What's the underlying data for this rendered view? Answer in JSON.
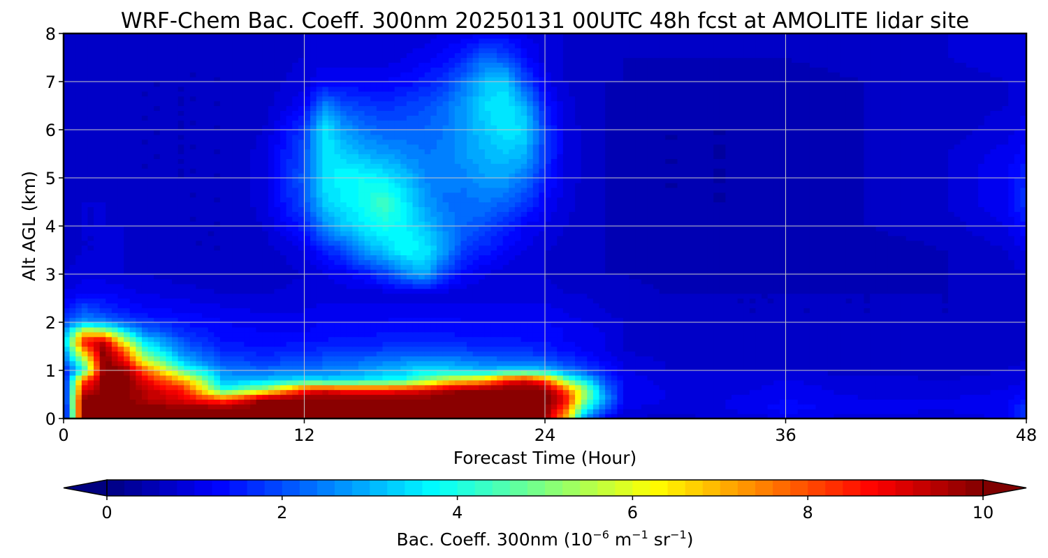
{
  "chart_data": {
    "type": "heatmap",
    "title": "WRF-Chem Bac. Coeff. 300nm  20250131 00UTC 48h fcst at AMOLITE lidar site",
    "xlabel": "Forecast Time (Hour)",
    "ylabel": "Alt AGL (km)",
    "xlim": [
      0,
      48
    ],
    "ylim": [
      0,
      8
    ],
    "xticks": [
      "0",
      "12",
      "24",
      "36",
      "48"
    ],
    "yticks": [
      "0",
      "1",
      "2",
      "3",
      "4",
      "5",
      "6",
      "7",
      "8"
    ],
    "grid": true,
    "colormap": "jet",
    "colorbar": {
      "label": "Bac. Coeff. 300nm  (10",
      "label_exp1": "−6",
      "label_mid": " m",
      "label_exp2": "−1",
      "label_mid2": " sr",
      "label_exp3": "−1",
      "label_end": ")",
      "range": [
        0,
        10
      ],
      "extend": "both",
      "ticks": [
        "0",
        "2",
        "4",
        "6",
        "8",
        "10"
      ]
    },
    "x": [
      0,
      1,
      2,
      3,
      4,
      6,
      8,
      10,
      12,
      13,
      14,
      15,
      16,
      17,
      18,
      19,
      20,
      21,
      22,
      23,
      24,
      25,
      26,
      27,
      28,
      30,
      33,
      36,
      40,
      44,
      47,
      48
    ],
    "y": [
      0,
      0.2,
      0.4,
      0.6,
      0.8,
      1.0,
      1.2,
      1.4,
      1.6,
      1.8,
      2.0,
      2.2,
      2.6,
      3.0,
      3.5,
      4.0,
      4.5,
      5.0,
      5.5,
      6.0,
      6.5,
      7.0,
      7.5,
      8.0
    ],
    "z_note": "backscatter values in 1e-6 m^-1 sr^-1, rows = altitude, cols = forecast hour",
    "z": [
      [
        0.5,
        10,
        10,
        10,
        10,
        10,
        10,
        10,
        10,
        10,
        10,
        10,
        10,
        10,
        10,
        10,
        10,
        10,
        10,
        10,
        10,
        7.0,
        2.5,
        1.2,
        0.8,
        0.7,
        0.8,
        1.0,
        0.9,
        0.9,
        1.0,
        1.6
      ],
      [
        0.5,
        10,
        10,
        10,
        10,
        10,
        10,
        10,
        10,
        10,
        10,
        10,
        10,
        10,
        10,
        10,
        10,
        10,
        10,
        10,
        10,
        8.0,
        3.8,
        2.0,
        1.0,
        0.9,
        1.0,
        1.3,
        1.1,
        1.0,
        1.2,
        2.0
      ],
      [
        0.8,
        10,
        10,
        10,
        9.5,
        9.0,
        8.0,
        10,
        10,
        10,
        10,
        10,
        10,
        10,
        10,
        10,
        10,
        10,
        10,
        10,
        10,
        9.0,
        5.0,
        2.8,
        1.2,
        1.0,
        1.0,
        1.2,
        1.0,
        1.0,
        1.1,
        1.5
      ],
      [
        1.0,
        9.0,
        10,
        10,
        9.5,
        8.5,
        4.0,
        5.5,
        8.5,
        9.0,
        8.5,
        8.5,
        8.5,
        8.8,
        9.0,
        9.5,
        10,
        10,
        10,
        10,
        10,
        8.0,
        5.2,
        2.5,
        1.2,
        1.0,
        0.9,
        1.1,
        0.9,
        0.9,
        1.0,
        1.2
      ],
      [
        1.0,
        8.0,
        10,
        10,
        9.0,
        7.0,
        3.0,
        3.2,
        3.6,
        3.4,
        3.5,
        3.6,
        3.8,
        4.0,
        5.0,
        6.0,
        6.5,
        7.0,
        8.5,
        9.0,
        8.0,
        5.0,
        3.5,
        2.0,
        1.2,
        0.9,
        0.9,
        1.0,
        0.9,
        0.8,
        0.9,
        1.0
      ],
      [
        1.2,
        4.0,
        10,
        10,
        8.0,
        4.5,
        2.5,
        2.3,
        2.5,
        2.5,
        2.6,
        2.8,
        3.0,
        3.2,
        3.5,
        3.4,
        3.2,
        3.1,
        3.3,
        3.5,
        3.2,
        2.6,
        2.0,
        1.5,
        1.0,
        0.8,
        0.8,
        0.8,
        0.7,
        0.7,
        0.8,
        0.9
      ],
      [
        2.0,
        5.0,
        10,
        9.0,
        6.0,
        3.0,
        2.0,
        1.8,
        2.0,
        2.1,
        2.2,
        2.3,
        2.5,
        2.6,
        2.8,
        2.7,
        2.5,
        2.4,
        2.3,
        2.3,
        2.1,
        1.8,
        1.5,
        1.2,
        0.9,
        0.8,
        0.7,
        0.7,
        0.7,
        0.7,
        0.7,
        0.8
      ],
      [
        2.5,
        7.0,
        10,
        8.0,
        4.5,
        2.5,
        1.6,
        1.5,
        1.6,
        1.7,
        1.8,
        1.8,
        1.9,
        1.9,
        2.0,
        2.0,
        1.9,
        1.8,
        1.8,
        1.7,
        1.6,
        1.4,
        1.2,
        1.0,
        0.8,
        0.7,
        0.7,
        0.7,
        0.7,
        0.7,
        0.7,
        0.7
      ],
      [
        3.0,
        8.5,
        9.5,
        6.0,
        3.5,
        2.0,
        1.4,
        1.3,
        1.4,
        1.4,
        1.5,
        1.5,
        1.5,
        1.6,
        1.6,
        1.6,
        1.5,
        1.5,
        1.5,
        1.4,
        1.4,
        1.2,
        1.1,
        1.0,
        0.8,
        0.7,
        0.7,
        0.7,
        0.7,
        0.7,
        0.7,
        0.7
      ],
      [
        2.5,
        6.5,
        6.0,
        4.0,
        2.5,
        1.6,
        1.3,
        1.2,
        1.2,
        1.3,
        1.3,
        1.3,
        1.4,
        1.4,
        1.4,
        1.4,
        1.3,
        1.3,
        1.3,
        1.3,
        1.3,
        1.2,
        1.1,
        1.0,
        0.8,
        0.7,
        0.7,
        0.7,
        0.7,
        0.7,
        0.7,
        0.7
      ],
      [
        2.0,
        2.8,
        2.6,
        2.2,
        1.8,
        1.4,
        1.2,
        1.1,
        1.1,
        1.2,
        1.2,
        1.2,
        1.2,
        1.3,
        1.3,
        1.3,
        1.2,
        1.2,
        1.2,
        1.2,
        1.2,
        1.1,
        1.0,
        0.9,
        0.8,
        0.7,
        0.7,
        0.7,
        0.7,
        0.7,
        0.7,
        0.7
      ],
      [
        1.5,
        2.2,
        1.8,
        1.5,
        1.3,
        1.2,
        1.1,
        1.0,
        1.0,
        1.1,
        1.1,
        1.1,
        1.1,
        1.1,
        1.1,
        1.1,
        1.1,
        1.1,
        1.1,
        1.1,
        1.1,
        1.0,
        0.9,
        0.8,
        0.7,
        0.7,
        0.6,
        0.6,
        0.6,
        0.6,
        0.7,
        0.7
      ],
      [
        1.0,
        1.2,
        1.2,
        1.1,
        1.0,
        0.9,
        0.8,
        0.8,
        0.9,
        0.9,
        0.9,
        0.9,
        0.9,
        0.9,
        0.9,
        0.9,
        0.9,
        0.9,
        0.9,
        0.9,
        0.9,
        0.8,
        0.8,
        0.7,
        0.7,
        0.6,
        0.6,
        0.6,
        0.6,
        0.6,
        0.6,
        0.7
      ],
      [
        0.8,
        0.9,
        0.9,
        0.8,
        0.8,
        0.7,
        0.6,
        0.6,
        0.8,
        1.0,
        1.1,
        1.4,
        1.8,
        2.5,
        3.0,
        1.8,
        1.2,
        1.0,
        0.9,
        0.8,
        0.8,
        0.7,
        0.7,
        0.6,
        0.6,
        0.5,
        0.5,
        0.5,
        0.5,
        0.6,
        0.7,
        0.8
      ],
      [
        0.7,
        0.8,
        0.8,
        0.8,
        0.7,
        0.6,
        0.6,
        0.7,
        1.0,
        1.5,
        2.0,
        2.8,
        3.2,
        3.8,
        3.6,
        2.8,
        1.8,
        1.5,
        1.2,
        1.0,
        0.8,
        0.7,
        0.7,
        0.6,
        0.5,
        0.5,
        0.5,
        0.5,
        0.5,
        0.6,
        0.8,
        1.0
      ],
      [
        0.7,
        0.8,
        0.8,
        0.8,
        0.7,
        0.6,
        0.6,
        0.8,
        1.5,
        2.6,
        3.2,
        3.6,
        3.9,
        3.7,
        3.2,
        2.6,
        2.2,
        2.0,
        1.6,
        1.2,
        1.0,
        0.8,
        0.7,
        0.6,
        0.5,
        0.5,
        0.5,
        0.5,
        0.6,
        0.7,
        1.0,
        1.4
      ],
      [
        0.7,
        0.8,
        0.8,
        0.7,
        0.7,
        0.6,
        0.6,
        0.9,
        2.0,
        3.3,
        3.6,
        3.9,
        4.4,
        3.6,
        2.8,
        2.4,
        2.3,
        2.4,
        2.2,
        1.8,
        1.2,
        0.9,
        0.7,
        0.6,
        0.5,
        0.4,
        0.4,
        0.5,
        0.6,
        0.8,
        1.2,
        1.8
      ],
      [
        0.7,
        0.7,
        0.8,
        0.7,
        0.6,
        0.6,
        0.6,
        0.9,
        2.1,
        3.5,
        3.8,
        3.8,
        3.6,
        3.2,
        2.6,
        2.4,
        2.5,
        2.8,
        2.8,
        2.4,
        1.5,
        1.0,
        0.7,
        0.6,
        0.5,
        0.4,
        0.4,
        0.5,
        0.6,
        0.8,
        1.2,
        1.6
      ],
      [
        0.7,
        0.7,
        0.7,
        0.7,
        0.6,
        0.6,
        0.6,
        0.9,
        2.0,
        3.6,
        3.3,
        3.0,
        2.8,
        2.6,
        2.4,
        2.5,
        2.8,
        3.0,
        3.2,
        3.0,
        1.8,
        1.0,
        0.7,
        0.6,
        0.5,
        0.4,
        0.4,
        0.5,
        0.6,
        0.8,
        1.1,
        1.3
      ],
      [
        0.7,
        0.7,
        0.7,
        0.7,
        0.6,
        0.6,
        0.6,
        0.8,
        1.8,
        3.6,
        2.8,
        2.4,
        2.2,
        2.2,
        2.2,
        2.4,
        2.8,
        3.2,
        3.6,
        3.4,
        1.8,
        1.0,
        0.7,
        0.6,
        0.5,
        0.4,
        0.4,
        0.5,
        0.6,
        0.7,
        0.9,
        1.1
      ],
      [
        0.7,
        0.7,
        0.7,
        0.7,
        0.6,
        0.6,
        0.6,
        0.7,
        1.2,
        2.6,
        2.0,
        1.8,
        1.7,
        1.8,
        2.0,
        2.3,
        2.8,
        3.4,
        3.6,
        3.0,
        1.5,
        0.9,
        0.7,
        0.6,
        0.5,
        0.5,
        0.4,
        0.5,
        0.6,
        0.7,
        0.8,
        1.0
      ],
      [
        0.7,
        0.7,
        0.7,
        0.7,
        0.6,
        0.6,
        0.6,
        0.7,
        0.9,
        1.2,
        1.2,
        1.2,
        1.2,
        1.3,
        1.5,
        1.8,
        2.4,
        3.2,
        3.3,
        2.0,
        1.1,
        0.8,
        0.7,
        0.6,
        0.6,
        0.5,
        0.5,
        0.5,
        0.6,
        0.7,
        0.8,
        0.9
      ],
      [
        0.7,
        0.7,
        0.7,
        0.7,
        0.7,
        0.6,
        0.6,
        0.7,
        0.8,
        0.9,
        0.9,
        0.9,
        0.9,
        1.0,
        1.1,
        1.3,
        1.6,
        2.2,
        2.0,
        1.3,
        0.9,
        0.8,
        0.7,
        0.7,
        0.6,
        0.6,
        0.6,
        0.6,
        0.7,
        0.8,
        0.9,
        0.9
      ],
      [
        0.8,
        0.8,
        0.8,
        0.8,
        0.7,
        0.7,
        0.7,
        0.7,
        0.8,
        0.8,
        0.8,
        0.8,
        0.8,
        0.9,
        0.9,
        1.0,
        1.1,
        1.2,
        1.2,
        1.0,
        0.9,
        0.8,
        0.8,
        0.7,
        0.7,
        0.7,
        0.7,
        0.7,
        0.8,
        0.8,
        0.9,
        0.9
      ]
    ]
  }
}
